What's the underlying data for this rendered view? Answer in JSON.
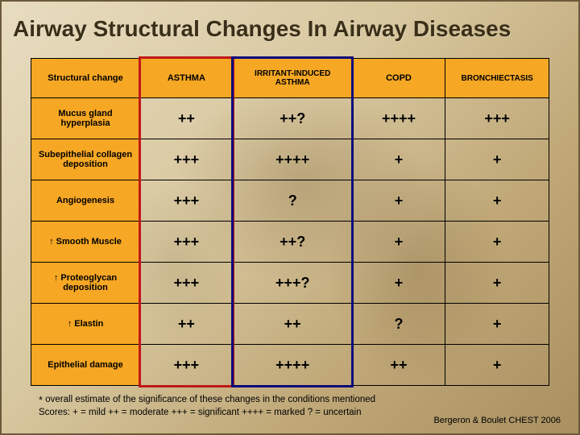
{
  "title": "Airway Structural Changes In Airway Diseases",
  "table": {
    "columns": [
      {
        "label": "Structural change"
      },
      {
        "label": "ASTHMA"
      },
      {
        "label": "IRRITANT-INDUCED ASTHMA",
        "small": true
      },
      {
        "label": "COPD"
      },
      {
        "label": "BRONCHIECTASIS",
        "small": true
      }
    ],
    "rows": [
      {
        "head": "Mucus gland hyperplasia",
        "cells": [
          "++",
          "++?",
          "++++",
          "+++"
        ]
      },
      {
        "head": "Subepithelial collagen deposition",
        "cells": [
          "+++",
          "++++",
          "+",
          "+"
        ]
      },
      {
        "head": "Angiogenesis",
        "cells": [
          "+++",
          "?",
          "+",
          "+"
        ]
      },
      {
        "head": "↑ Smooth Muscle",
        "cells": [
          "+++",
          "++?",
          "+",
          "+"
        ]
      },
      {
        "head": "↑ Proteoglycan deposition",
        "cells": [
          "+++",
          "+++?",
          "+",
          "+"
        ]
      },
      {
        "head": "↑ Elastin",
        "cells": [
          "++",
          "++",
          "?",
          "+"
        ]
      },
      {
        "head": "Epithelial damage",
        "cells": [
          "+++",
          "++++",
          "++",
          "+"
        ]
      }
    ],
    "col_widths_pct": [
      21,
      18,
      23,
      18,
      20
    ],
    "highlight_boxes": [
      {
        "col_index": 1,
        "color": "#c01818"
      },
      {
        "col_index": 2,
        "color": "#0a0a7a"
      }
    ]
  },
  "footnote_line1": "overall estimate of the significance of these changes in the conditions mentioned",
  "footnote_line2": "Scores: + = mild ++ = moderate +++ = significant ++++ = marked  ? = uncertain",
  "footnote_star": "*",
  "citation": "Bergeron & Boulet CHEST 2006",
  "colors": {
    "header_bg": "#f6a723",
    "border": "#000000",
    "title": "#3a2f18"
  }
}
